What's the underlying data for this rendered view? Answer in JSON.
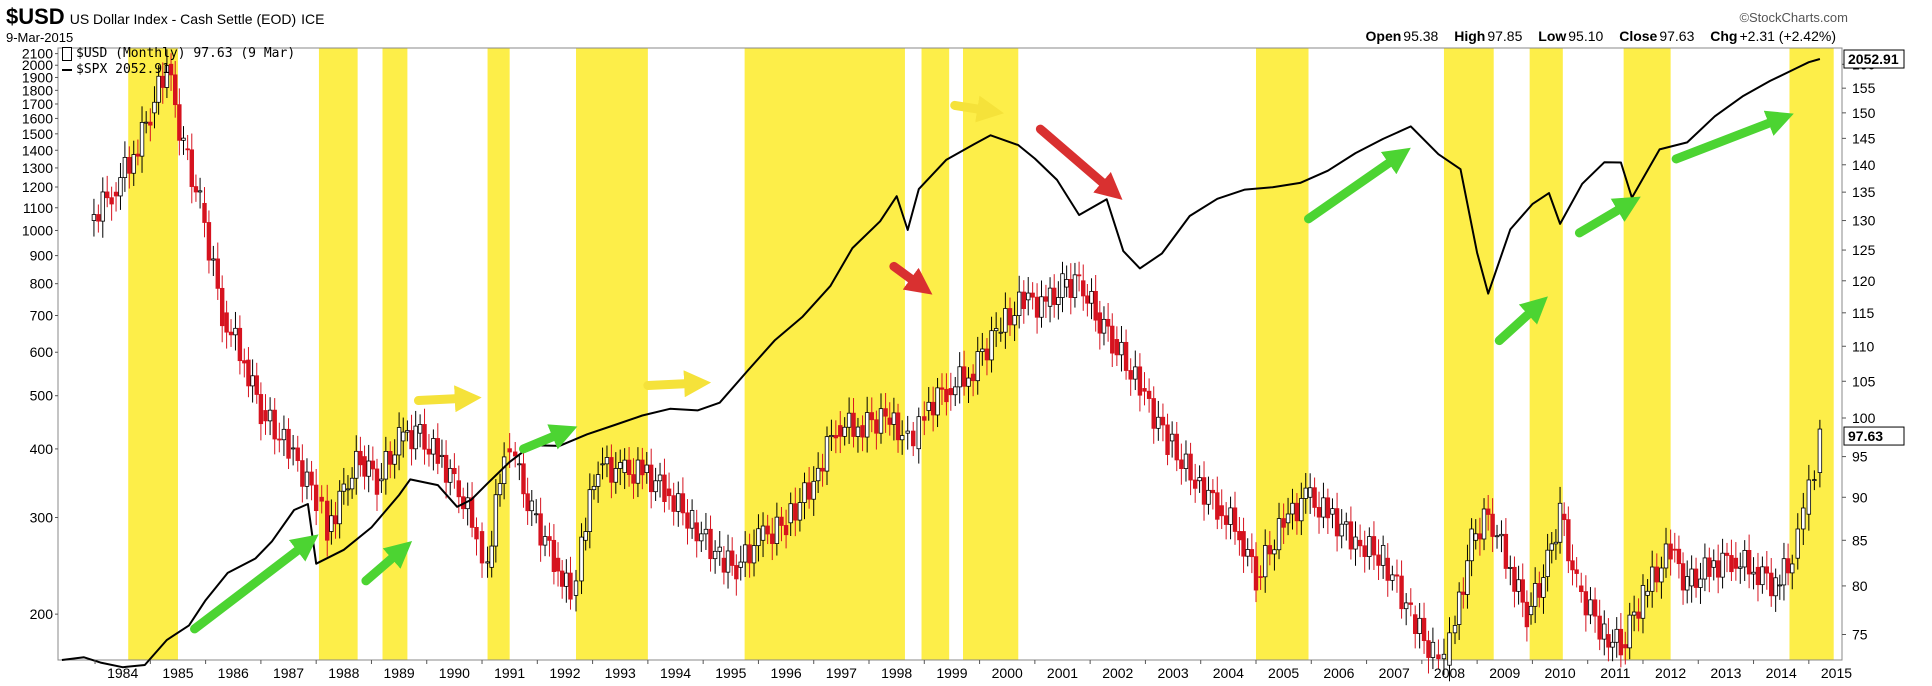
{
  "header": {
    "symbol": "$USD",
    "name": "US Dollar Index - Cash Settle (EOD)",
    "exchange": "ICE",
    "date": "9-Mar-2015",
    "copyright": "©StockCharts.com",
    "open_label": "Open",
    "open": "95.38",
    "high_label": "High",
    "high": "97.85",
    "low_label": "Low",
    "low": "95.10",
    "close_label": "Close",
    "close": "97.63",
    "chg_label": "Chg",
    "chg": "+2.31 (+2.42%)"
  },
  "legend": {
    "usd": "$USD (Monthly) 97.63 (9 Mar)",
    "spx": "$SPX 2052.91"
  },
  "badges": {
    "spx_last": "2052.91",
    "usd_last": "97.63"
  },
  "colors": {
    "highlight": "#fdee49",
    "up_candle": "#000000",
    "down_candle": "#d6131f",
    "green_arrow": "#4cd432",
    "yellow_arrow": "#f5e23a",
    "red_arrow": "#d93030"
  },
  "chart_data": {
    "type": "line",
    "scale": "log",
    "left_axis_label_series": "$SPX",
    "right_axis_label_series": "$USD",
    "x_ticks": [
      "1984",
      "1985",
      "1986",
      "1987",
      "1988",
      "1989",
      "1990",
      "1991",
      "1992",
      "1993",
      "1994",
      "1995",
      "1996",
      "1997",
      "1998",
      "1999",
      "2000",
      "2001",
      "2002",
      "2003",
      "2004",
      "2005",
      "2006",
      "2007",
      "2008",
      "2009",
      "2010",
      "2011",
      "2012",
      "2013",
      "2014",
      "2015"
    ],
    "left_ticks": [
      2100,
      2000,
      1900,
      1800,
      1700,
      1600,
      1500,
      1400,
      1300,
      1200,
      1100,
      1000,
      900,
      800,
      700,
      600,
      500,
      400,
      300,
      200
    ],
    "right_ticks": [
      160,
      155,
      150,
      145,
      140,
      135,
      130,
      125,
      120,
      115,
      110,
      105,
      100,
      95,
      90,
      85,
      80,
      75
    ],
    "left_ylim": [
      165,
      2150
    ],
    "right_ylim": [
      72.5,
      163.5
    ],
    "xlim": [
      1983.33,
      2015.6
    ],
    "series": [
      {
        "name": "$USD",
        "style": "candles",
        "x": [
          1983.9,
          1984.3,
          1984.7,
          1985.0,
          1985.3,
          1985.6,
          1985.9,
          1986.3,
          1986.7,
          1987.0,
          1987.5,
          1988.0,
          1988.2,
          1988.5,
          1988.8,
          1989.1,
          1989.5,
          1989.8,
          1990.2,
          1990.5,
          1990.9,
          1991.1,
          1991.4,
          1991.6,
          1991.9,
          1992.3,
          1992.6,
          1992.8,
          1993.1,
          1993.5,
          1993.9,
          1994.3,
          1994.8,
          1995.3,
          1995.6,
          1996.0,
          1996.5,
          1997.0,
          1997.4,
          1997.8,
          1998.3,
          1998.6,
          1998.8,
          1999.0,
          1999.4,
          1999.8,
          2000.3,
          2000.8,
          2001.2,
          2001.5,
          2001.8,
          2002.1,
          2002.4,
          2002.9,
          2003.4,
          2003.9,
          2004.3,
          2004.7,
          2005.0,
          2005.5,
          2005.9,
          2006.3,
          2006.8,
          2007.3,
          2007.8,
          2008.2,
          2008.4,
          2008.6,
          2008.9,
          2009.2,
          2009.6,
          2009.9,
          2010.2,
          2010.5,
          2010.8,
          2011.3,
          2011.6,
          2012.0,
          2012.5,
          2012.8,
          2013.2,
          2013.6,
          2014.0,
          2014.4,
          2014.7,
          2014.9,
          2015.1,
          2015.2
        ],
        "values": [
          130,
          135,
          142,
          150,
          160,
          143,
          133,
          115,
          108,
          101,
          96,
          90,
          86,
          91,
          95,
          92,
          97,
          98,
          95,
          92,
          86,
          82,
          96,
          94,
          88,
          83,
          79,
          85,
          94,
          93,
          93,
          91,
          87,
          83,
          82,
          85,
          87,
          92,
          99,
          99,
          100,
          98,
          96,
          101,
          104,
          106,
          112,
          117,
          116,
          119,
          120,
          115,
          111,
          104,
          97,
          92,
          89,
          86,
          81,
          87,
          90,
          88,
          85,
          83,
          77,
          73,
          72,
          76,
          85,
          88,
          82,
          77,
          81,
          88,
          80,
          75,
          74,
          79,
          84,
          80,
          82,
          83,
          82,
          80,
          83,
          88,
          93,
          97.63
        ]
      },
      {
        "name": "$SPX",
        "style": "line",
        "x": [
          1983.4,
          1983.8,
          1984.1,
          1984.5,
          1984.9,
          1985.3,
          1985.7,
          1986.0,
          1986.4,
          1986.9,
          1987.2,
          1987.6,
          1987.85,
          1988.0,
          1988.5,
          1989.0,
          1989.5,
          1989.7,
          1990.2,
          1990.55,
          1990.8,
          1991.1,
          1991.5,
          1991.9,
          1992.4,
          1992.9,
          1993.4,
          1993.9,
          1994.4,
          1994.9,
          1995.3,
          1995.8,
          1996.3,
          1996.8,
          1997.3,
          1997.7,
          1998.2,
          1998.5,
          1998.7,
          1998.9,
          1999.4,
          1999.9,
          2000.2,
          2000.7,
          2001.0,
          2001.4,
          2001.8,
          2002.3,
          2002.6,
          2002.9,
          2003.3,
          2003.8,
          2004.3,
          2004.8,
          2005.3,
          2005.8,
          2006.3,
          2006.8,
          2007.3,
          2007.8,
          2008.3,
          2008.7,
          2009.0,
          2009.2,
          2009.6,
          2010.0,
          2010.3,
          2010.5,
          2010.9,
          2011.3,
          2011.6,
          2011.8,
          2012.3,
          2012.8,
          2013.3,
          2013.8,
          2014.3,
          2014.8,
          2015.0,
          2015.2
        ],
        "values": [
          165,
          168,
          165,
          162,
          163,
          180,
          190,
          210,
          235,
          250,
          270,
          310,
          320,
          250,
          265,
          290,
          330,
          350,
          340,
          310,
          320,
          345,
          380,
          410,
          410,
          430,
          445,
          460,
          470,
          465,
          480,
          550,
          630,
          700,
          800,
          940,
          1050,
          1160,
          1000,
          1180,
          1330,
          1420,
          1480,
          1430,
          1360,
          1250,
          1080,
          1150,
          920,
          850,
          900,
          1050,
          1130,
          1180,
          1200,
          1230,
          1300,
          1400,
          1480,
          1550,
          1370,
          1280,
          900,
          760,
          1000,
          1120,
          1180,
          1040,
          1230,
          1340,
          1330,
          1140,
          1390,
          1430,
          1600,
          1750,
          1880,
          2000,
          2050,
          2052.91
        ]
      }
    ],
    "highlight_periods": [
      [
        1984.6,
        1985.5
      ],
      [
        1988.05,
        1988.75
      ],
      [
        1989.2,
        1989.65
      ],
      [
        1991.1,
        1991.5
      ],
      [
        1992.7,
        1994.0
      ],
      [
        1995.75,
        1998.65
      ],
      [
        1998.95,
        1999.45
      ],
      [
        1999.7,
        2000.7
      ],
      [
        2005.0,
        2005.95
      ],
      [
        2008.4,
        2009.3
      ],
      [
        2009.95,
        2010.55
      ],
      [
        2011.65,
        2012.5
      ],
      [
        2014.65,
        2015.45
      ]
    ]
  }
}
